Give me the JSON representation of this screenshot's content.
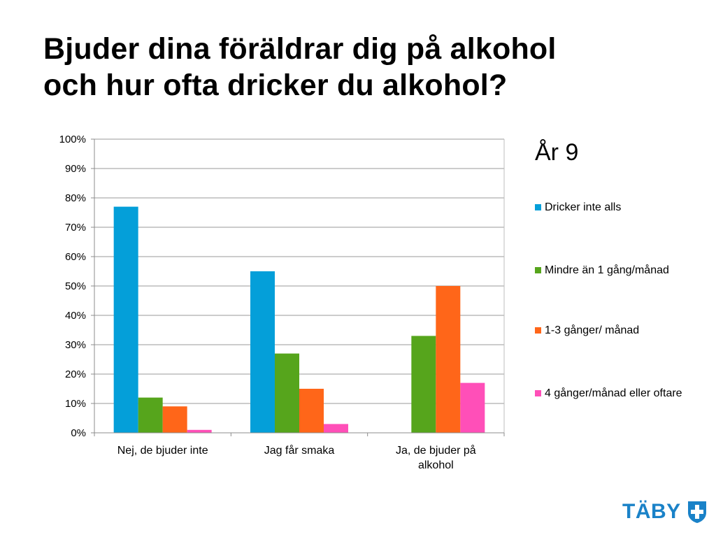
{
  "title": {
    "line1": "Bjuder dina föräldrar dig på alkohol",
    "line2": "och hur ofta dricker du alkohol?"
  },
  "logo": {
    "text": "TÄBY",
    "icon": "taby-shield-icon",
    "color": "#1a82c8"
  },
  "chart_data": {
    "type": "bar",
    "title": "År 9",
    "categories": [
      "Nej, de bjuder inte",
      "Jag får smaka",
      "Ja, de bjuder på alkohol"
    ],
    "series": [
      {
        "name": "Dricker inte alls",
        "color": "#049fd9",
        "values": [
          77,
          55,
          0
        ]
      },
      {
        "name": "Mindre än 1 gång/månad",
        "color": "#56a51c",
        "values": [
          12,
          27,
          33
        ]
      },
      {
        "name": "1-3 gånger/ månad",
        "color": "#ff6619",
        "values": [
          9,
          15,
          50
        ]
      },
      {
        "name": "4 gånger/månad eller oftare",
        "color": "#ff4fb8",
        "values": [
          1,
          3,
          17
        ]
      }
    ],
    "ylim": [
      0,
      100
    ],
    "yticks": [
      "0%",
      "10%",
      "20%",
      "30%",
      "40%",
      "50%",
      "60%",
      "70%",
      "80%",
      "90%",
      "100%"
    ],
    "grid": true,
    "legend": "right"
  }
}
